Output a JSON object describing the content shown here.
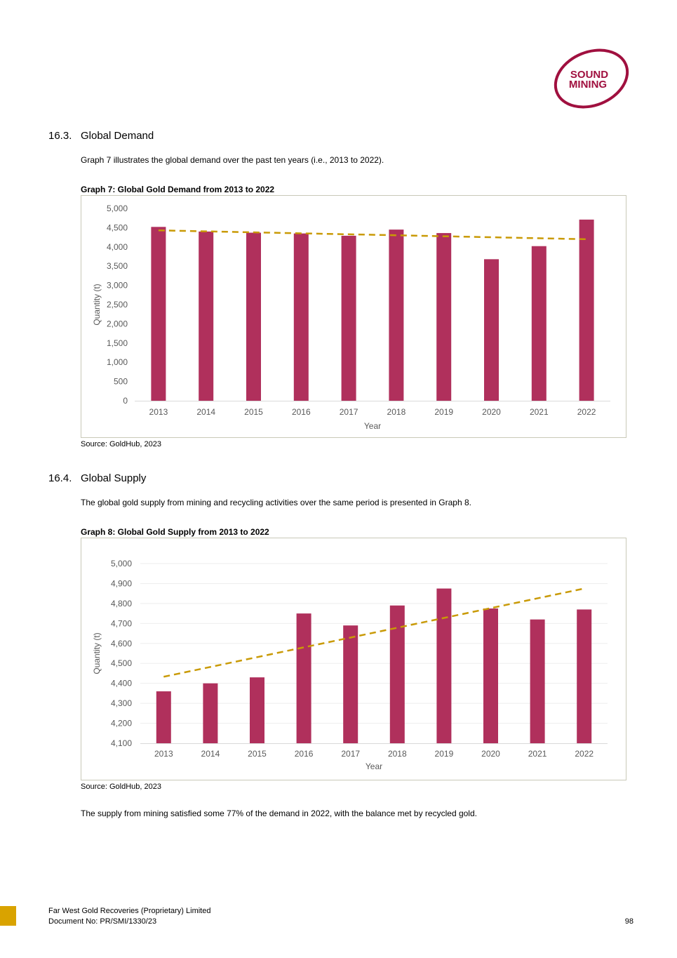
{
  "logo": {
    "line1": "SOUND",
    "line2": "MINING",
    "color": "#a0103f"
  },
  "section_demand": {
    "number": "16.3.",
    "title": "Global Demand",
    "intro": "Graph 7 illustrates the global demand over the past ten years (i.e., 2013 to 2022).",
    "caption": "Graph 7: Global Gold Demand from 2013 to 2022",
    "source": "Source:  GoldHub, 2023"
  },
  "section_supply": {
    "number": "16.4.",
    "title": "Global Supply",
    "intro": "The global gold supply from mining and recycling activities over the same period is presented in Graph 8.",
    "caption": "Graph 8: Global Gold Supply from 2013 to 2022",
    "source": "Source:  GoldHub, 2023",
    "conclusion": "The supply from mining satisfied some 77% of the demand in 2022, with the balance met by recycled gold."
  },
  "chart_data": [
    {
      "type": "bar",
      "title": "Graph 7: Global Gold Demand from 2013 to 2022",
      "xlabel": "Year",
      "ylabel": "Quantity (t)",
      "categories": [
        "2013",
        "2014",
        "2015",
        "2016",
        "2017",
        "2018",
        "2019",
        "2020",
        "2021",
        "2022"
      ],
      "values": [
        4520,
        4400,
        4370,
        4350,
        4290,
        4450,
        4360,
        3680,
        4020,
        4710
      ],
      "trendline": {
        "style": "dashed",
        "start": 4430,
        "end": 4200
      },
      "ylim": [
        0,
        5000
      ],
      "yticks": [
        0,
        500,
        1000,
        1500,
        2000,
        2500,
        3000,
        3500,
        4000,
        4500,
        5000
      ],
      "ytick_labels": [
        "0",
        "500",
        "1,000",
        "1,500",
        "2,000",
        "2,500",
        "3,000",
        "3,500",
        "4,000",
        "4,500",
        "5,000"
      ],
      "grid": false,
      "bar_color": "#b0305c",
      "trend_color": "#c99a06"
    },
    {
      "type": "bar",
      "title": "Graph 8: Global Gold Supply from 2013 to 2022",
      "xlabel": "Year",
      "ylabel": "Quantity (t)",
      "categories": [
        "2013",
        "2014",
        "2015",
        "2016",
        "2017",
        "2018",
        "2019",
        "2020",
        "2021",
        "2022"
      ],
      "values": [
        4360,
        4400,
        4430,
        4750,
        4690,
        4790,
        4875,
        4775,
        4720,
        4770
      ],
      "trendline": {
        "style": "dashed",
        "start": 4433,
        "end": 4875
      },
      "ylim": [
        4100,
        5000
      ],
      "yticks": [
        4100,
        4200,
        4300,
        4400,
        4500,
        4600,
        4700,
        4800,
        4900,
        5000
      ],
      "ytick_labels": [
        "4,100",
        "4,200",
        "4,300",
        "4,400",
        "4,500",
        "4,600",
        "4,700",
        "4,800",
        "4,900",
        "5,000"
      ],
      "grid": true,
      "bar_color": "#b0305c",
      "trend_color": "#c99a06"
    }
  ],
  "footer": {
    "company": "Far West Gold Recoveries (Proprietary) Limited",
    "document": "Document No: PR/SMI/1330/23",
    "page": "98",
    "tab_color": "#d9a300"
  }
}
